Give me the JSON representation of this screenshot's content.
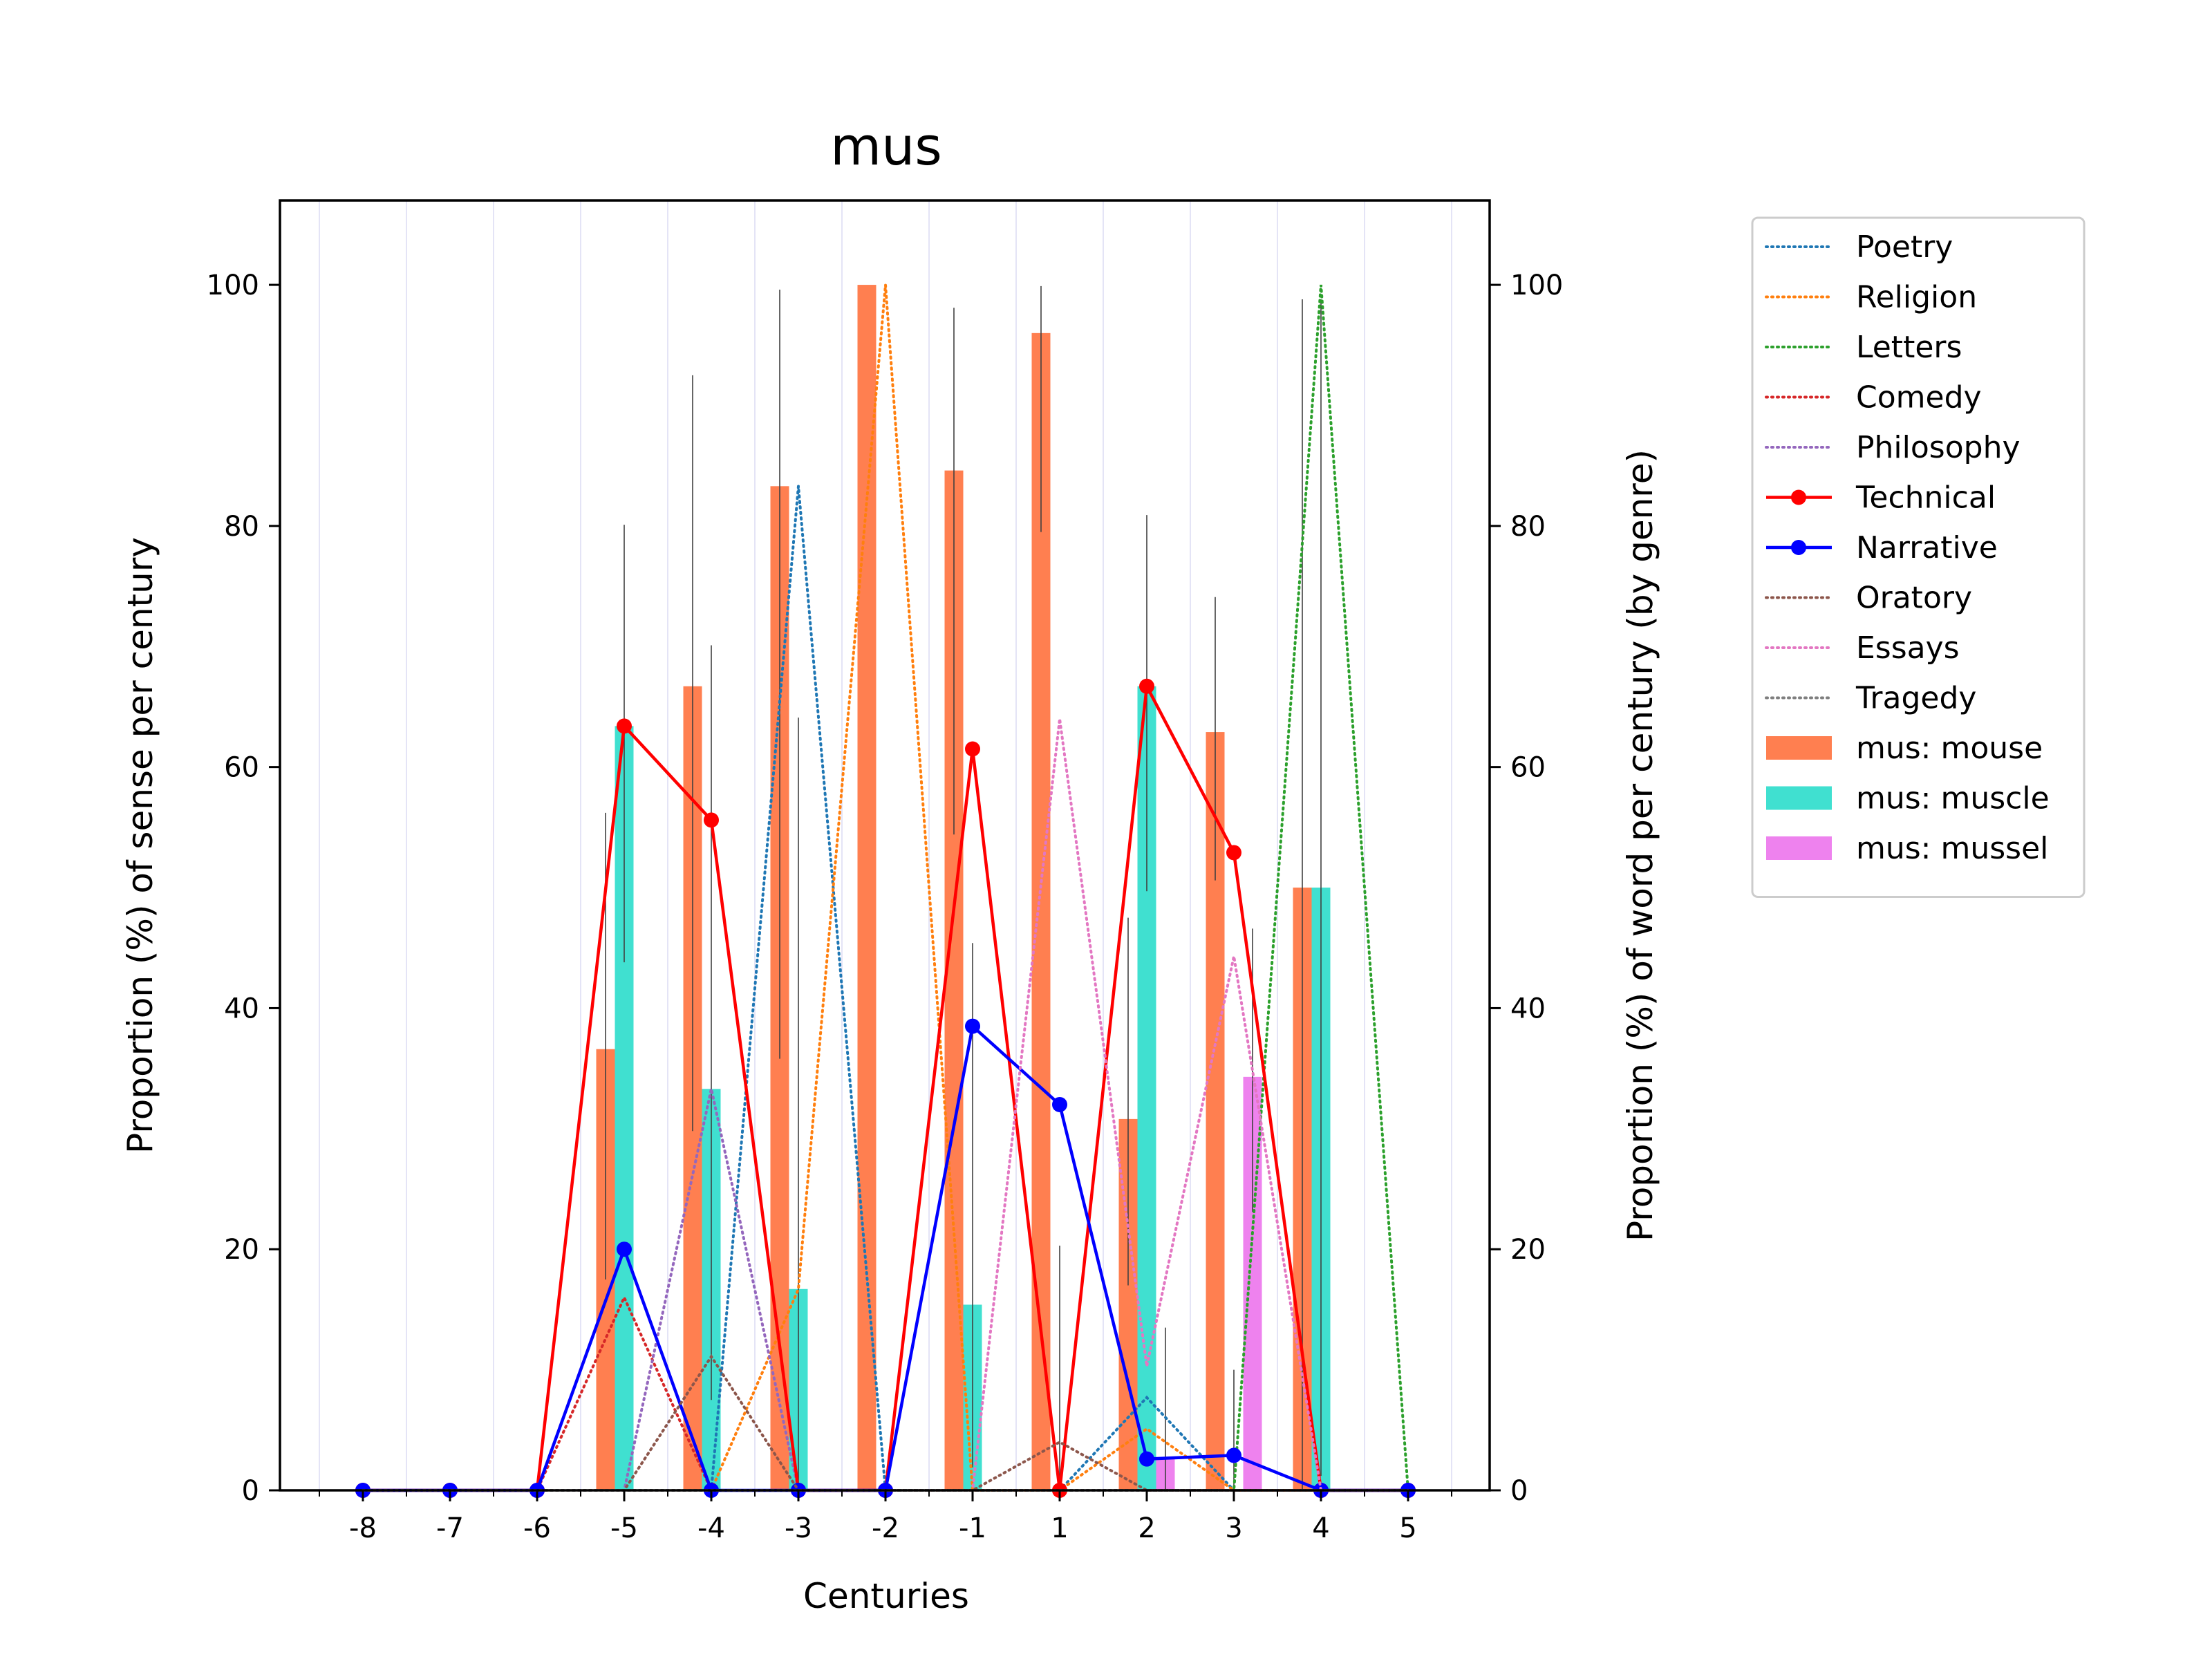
{
  "chart_data": {
    "type": "bar",
    "title": "mus",
    "xlabel": "Centuries",
    "ylabel": "Proportion (%) of sense per century",
    "ylabel_right": "Proportion (%) of word per century (by genre)",
    "categories": [
      "-8",
      "-7",
      "-6",
      "-5",
      "-4",
      "-3",
      "-2",
      "-1",
      "1",
      "2",
      "3",
      "4",
      "5"
    ],
    "ylim": [
      0,
      107
    ],
    "yticks": [
      "0",
      "20",
      "40",
      "60",
      "80",
      "100"
    ],
    "grid": "vertical",
    "legend_position": "outside-right",
    "bar_series": [
      {
        "name": "mus: mouse",
        "color": "#ff7f50",
        "values": [
          0,
          0,
          0,
          36.6,
          66.7,
          83.3,
          100,
          84.6,
          96,
          30.8,
          62.9,
          50,
          0
        ],
        "err_low": [
          0,
          0,
          0,
          17.5,
          29.8,
          35.8,
          0,
          54.4,
          79.5,
          17,
          50.6,
          0,
          0
        ],
        "err_high": [
          0,
          0,
          0,
          56.2,
          92.5,
          99.6,
          0,
          98.1,
          99.9,
          47.5,
          74.1,
          98.8,
          0
        ]
      },
      {
        "name": "mus: muscle",
        "color": "#40e0d0",
        "values": [
          0,
          0,
          0,
          63.4,
          33.3,
          16.7,
          0,
          15.4,
          0,
          66.7,
          0,
          50,
          0
        ],
        "err_low": [
          0,
          0,
          0,
          43.8,
          7.5,
          0.4,
          0,
          1.9,
          0,
          49.7,
          0,
          1.2,
          0
        ],
        "err_high": [
          0,
          0,
          0,
          80.1,
          70.1,
          64.1,
          0,
          45.4,
          20.3,
          80.9,
          10,
          98.8,
          0
        ]
      },
      {
        "name": "mus: mussel",
        "color": "#ee82ee",
        "values": [
          0,
          0,
          0,
          0,
          0,
          0,
          0,
          0,
          0,
          2.6,
          34.3,
          0,
          0
        ],
        "err_low": [
          0,
          0,
          0,
          0,
          0,
          0,
          0,
          0,
          0,
          0.1,
          23.1,
          0,
          0
        ],
        "err_high": [
          0,
          0,
          0,
          0,
          0,
          0,
          0,
          0,
          0,
          13.5,
          46.6,
          0,
          0
        ]
      }
    ],
    "line_series": [
      {
        "name": "Poetry",
        "color": "#1f77b4",
        "style": "dotted",
        "values": [
          0,
          0,
          0,
          0,
          0,
          83.3,
          0,
          0,
          0,
          7.7,
          0,
          0,
          0
        ]
      },
      {
        "name": "Religion",
        "color": "#ff7f0e",
        "style": "dotted",
        "values": [
          0,
          0,
          0,
          0,
          0,
          16.7,
          100,
          0,
          0,
          5.1,
          0,
          0,
          0
        ]
      },
      {
        "name": "Letters",
        "color": "#2ca02c",
        "style": "dotted",
        "values": [
          0,
          0,
          0,
          0,
          0,
          0,
          0,
          0,
          0,
          0,
          0,
          100,
          0
        ]
      },
      {
        "name": "Comedy",
        "color": "#d62728",
        "style": "dotted",
        "values": [
          0,
          0,
          0,
          16,
          0,
          0,
          0,
          0,
          0,
          0,
          0,
          0,
          0
        ]
      },
      {
        "name": "Philosophy",
        "color": "#9467bd",
        "style": "dotted",
        "values": [
          0,
          0,
          0,
          0,
          33.3,
          0,
          0,
          0,
          0,
          0,
          0,
          0,
          0
        ]
      },
      {
        "name": "Technical",
        "color": "#ff0000",
        "style": "solid-marker",
        "values": [
          0,
          0,
          0,
          63.4,
          55.6,
          0,
          0,
          61.5,
          0,
          66.7,
          52.9,
          0,
          0
        ]
      },
      {
        "name": "Narrative",
        "color": "#0000ff",
        "style": "solid-marker",
        "values": [
          0,
          0,
          0,
          20,
          0,
          0,
          0,
          38.5,
          32,
          2.6,
          2.9,
          0,
          0
        ]
      },
      {
        "name": "Oratory",
        "color": "#8c564b",
        "style": "dotted",
        "values": [
          0,
          0,
          0,
          0,
          11.1,
          0,
          0,
          0,
          4,
          0,
          0,
          0,
          0
        ]
      },
      {
        "name": "Essays",
        "color": "#e377c2",
        "style": "dotted",
        "values": [
          0,
          0,
          0,
          0,
          0,
          0,
          0,
          0,
          64,
          10.3,
          44.3,
          0,
          0
        ]
      },
      {
        "name": "Tragedy",
        "color": "#7f7f7f",
        "style": "dotted",
        "values": [
          0,
          0,
          0,
          0,
          0,
          0,
          0,
          0,
          0,
          0,
          0,
          0,
          0
        ]
      }
    ],
    "legend_order": [
      "Poetry",
      "Religion",
      "Letters",
      "Comedy",
      "Philosophy",
      "Technical",
      "Narrative",
      "Oratory",
      "Essays",
      "Tragedy",
      "mus: mouse",
      "mus: muscle",
      "mus: mussel"
    ]
  }
}
